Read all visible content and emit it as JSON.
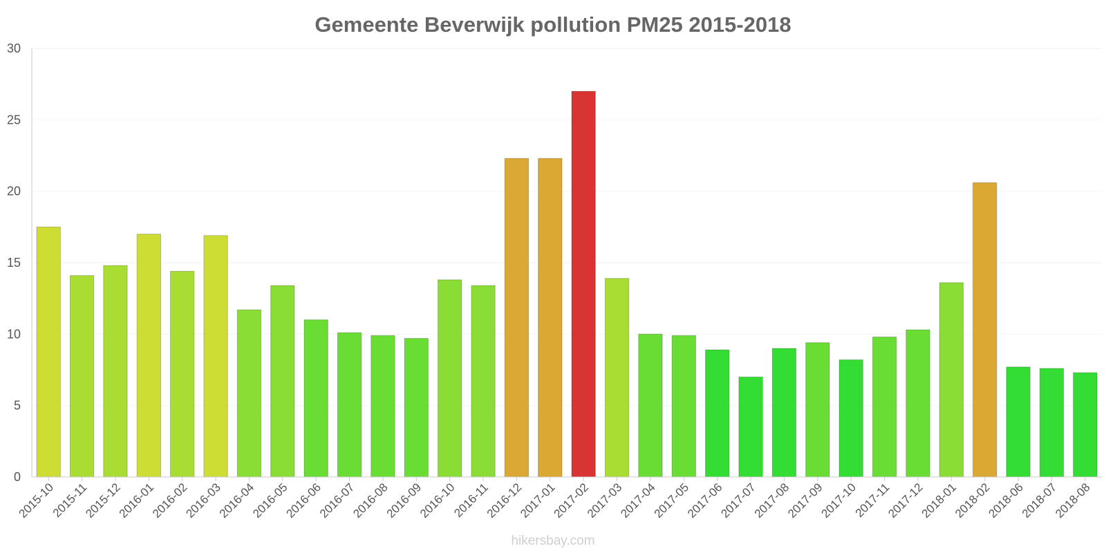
{
  "chart_data": {
    "type": "bar",
    "title": "Gemeente Beverwijk pollution PM25 2015-2018",
    "xlabel": "",
    "ylabel": "",
    "ylim": [
      0,
      30
    ],
    "yticks": [
      0,
      5,
      10,
      15,
      20,
      25,
      30
    ],
    "grid": true,
    "categories": [
      "2015-10",
      "2015-11",
      "2015-12",
      "2016-01",
      "2016-02",
      "2016-03",
      "2016-04",
      "2016-05",
      "2016-06",
      "2016-07",
      "2016-08",
      "2016-09",
      "2016-10",
      "2016-11",
      "2016-12",
      "2017-01",
      "2017-02",
      "2017-03",
      "2017-04",
      "2017-05",
      "2017-06",
      "2017-07",
      "2017-08",
      "2017-09",
      "2017-10",
      "2017-11",
      "2017-12",
      "2018-01",
      "2018-02",
      "2018-06",
      "2018-07",
      "2018-08"
    ],
    "values": [
      17.5,
      14.1,
      14.8,
      17.0,
      14.4,
      16.9,
      11.7,
      13.4,
      11.0,
      10.1,
      9.9,
      9.7,
      13.8,
      13.4,
      22.3,
      22.3,
      27.0,
      13.9,
      10.0,
      9.9,
      8.9,
      7.0,
      9.0,
      9.4,
      8.2,
      9.8,
      10.3,
      13.6,
      20.6,
      7.7,
      7.6,
      7.3
    ],
    "colors": [
      "#cddd34",
      "#aadd34",
      "#aadd34",
      "#cddd34",
      "#aadd34",
      "#cddd34",
      "#8add34",
      "#8add34",
      "#6add34",
      "#6add34",
      "#6add34",
      "#6add34",
      "#8add34",
      "#8add34",
      "#dba834",
      "#dba834",
      "#d93434",
      "#aadd34",
      "#6add34",
      "#6add34",
      "#34dd34",
      "#34dd34",
      "#34dd34",
      "#6add34",
      "#34dd34",
      "#6add34",
      "#6add34",
      "#8add34",
      "#dba834",
      "#34dd34",
      "#34dd34",
      "#34dd34"
    ]
  },
  "footer": {
    "credit": "hikersbay.com"
  }
}
